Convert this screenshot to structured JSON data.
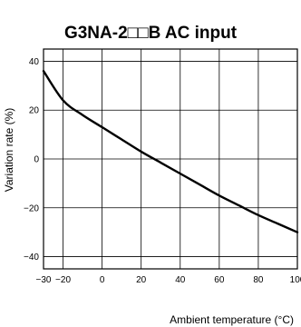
{
  "chart_data": {
    "type": "line",
    "title": "G3NA-2□□B AC input",
    "xlabel": "Ambient temperature (°C)",
    "ylabel": "Variation rate (%)",
    "xlim": [
      -30,
      100
    ],
    "ylim": [
      -45,
      45
    ],
    "xticks": [
      -30,
      -20,
      0,
      20,
      40,
      60,
      80,
      100
    ],
    "xtick_labels": [
      "−30",
      "−20",
      "0",
      "20",
      "40",
      "60",
      "80",
      "100"
    ],
    "yticks": [
      40,
      20,
      0,
      -20,
      -40
    ],
    "ytick_labels": [
      "40",
      "20",
      "0",
      "−20",
      "−40"
    ],
    "grid": true,
    "series": [
      {
        "x": [
          -30,
          -20,
          -10,
          0,
          10,
          20,
          30,
          40,
          50,
          60,
          70,
          80,
          90,
          100
        ],
        "y": [
          36,
          24,
          18,
          13,
          8,
          3,
          -1.5,
          -6,
          -10.5,
          -15,
          -19,
          -23,
          -26.5,
          -30
        ]
      }
    ]
  }
}
